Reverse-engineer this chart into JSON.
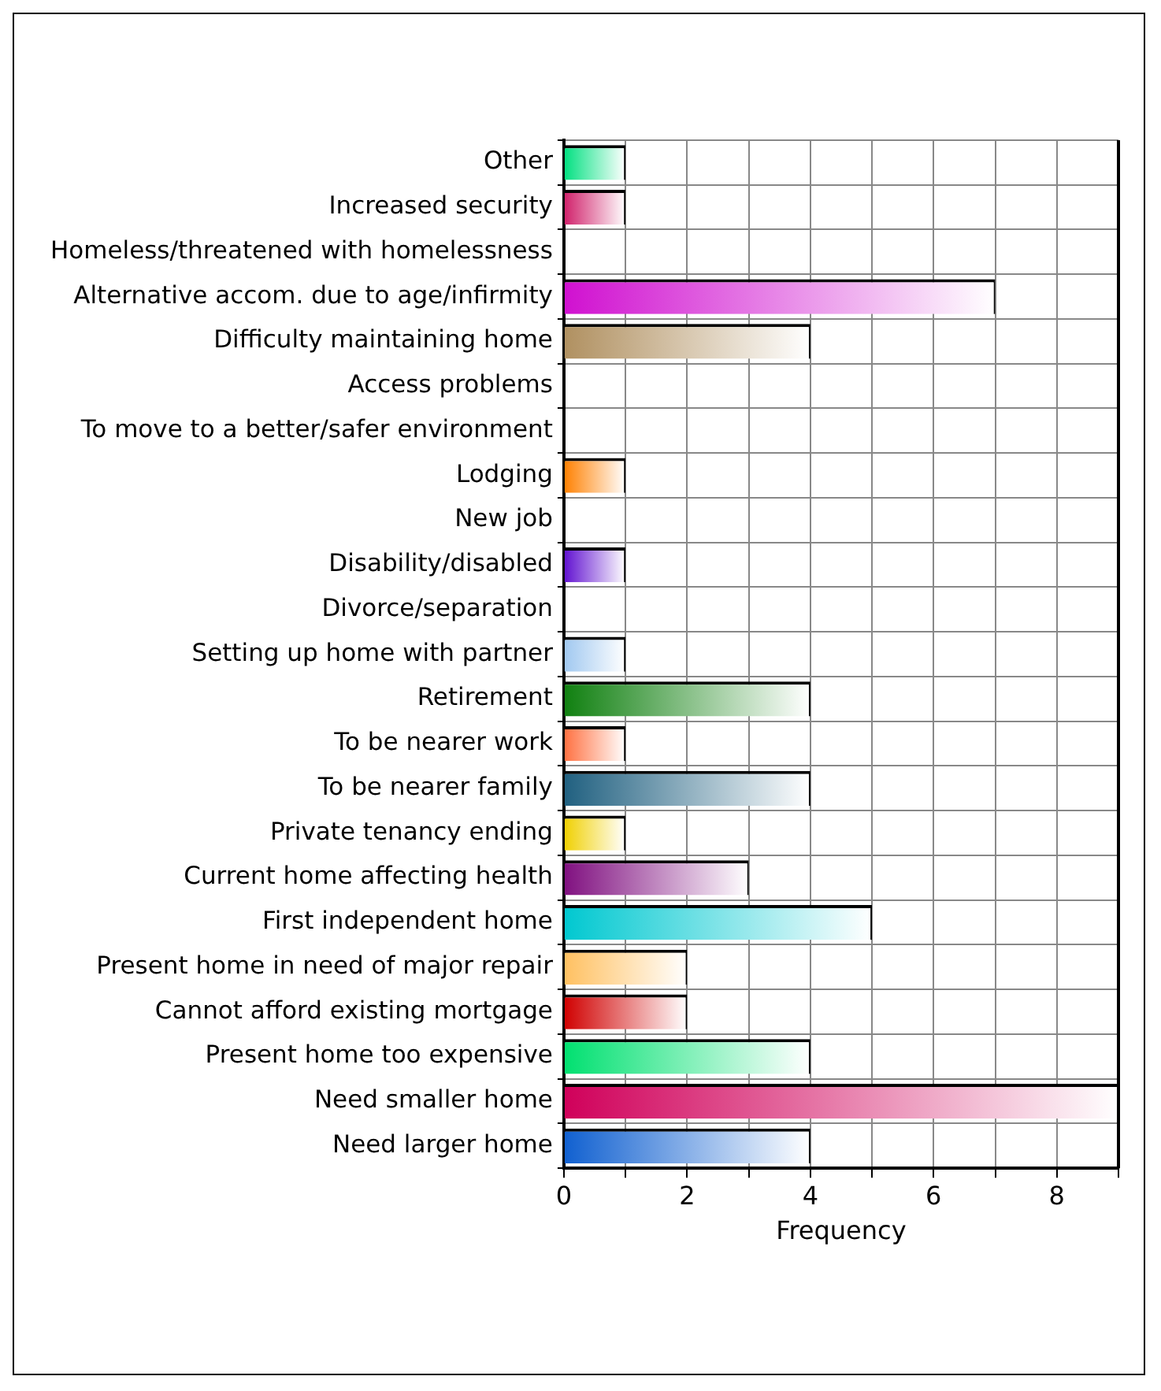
{
  "chart_data": {
    "type": "bar",
    "orientation": "horizontal",
    "xlabel": "Frequency",
    "categories": [
      "Other",
      "Increased security",
      "Homeless/threatened with homelessness",
      "Alternative accom. due to age/infirmity",
      "Difficulty maintaining home",
      "Access problems",
      "To move to a better/safer environment",
      "Lodging",
      "New job",
      "Disability/disabled",
      "Divorce/separation",
      "Setting up home with partner",
      "Retirement",
      "To be nearer work",
      "To be nearer family",
      "Private tenancy ending",
      "Current home affecting health",
      "First independent home",
      "Present home in need of major repair",
      "Cannot afford existing mortgage",
      "Present home too expensive",
      "Need smaller home",
      "Need larger home"
    ],
    "values": [
      1,
      1,
      0,
      7,
      4,
      0,
      0,
      1,
      0,
      1,
      0,
      1,
      4,
      1,
      4,
      1,
      3,
      5,
      2,
      2,
      4,
      9,
      4
    ],
    "colors": [
      "#00e080",
      "#d0206a",
      "#808080",
      "#d010d0",
      "#b09060",
      "#808080",
      "#808080",
      "#ff8000",
      "#808080",
      "#6010d0",
      "#808080",
      "#a0c8f0",
      "#108010",
      "#ff7040",
      "#206080",
      "#f0d000",
      "#801080",
      "#00c8d0",
      "#ffc060",
      "#d00000",
      "#00e070",
      "#d0005a",
      "#1060d0"
    ],
    "xlim": [
      0,
      9
    ],
    "xticks": [
      0,
      {
        "value": 1,
        "label": null
      },
      2,
      {
        "value": 3,
        "label": null
      },
      4,
      {
        "value": 5,
        "label": null
      },
      6,
      {
        "value": 7,
        "label": null
      },
      8,
      {
        "value": 9,
        "label": null
      }
    ],
    "grid": true,
    "legend": false
  }
}
